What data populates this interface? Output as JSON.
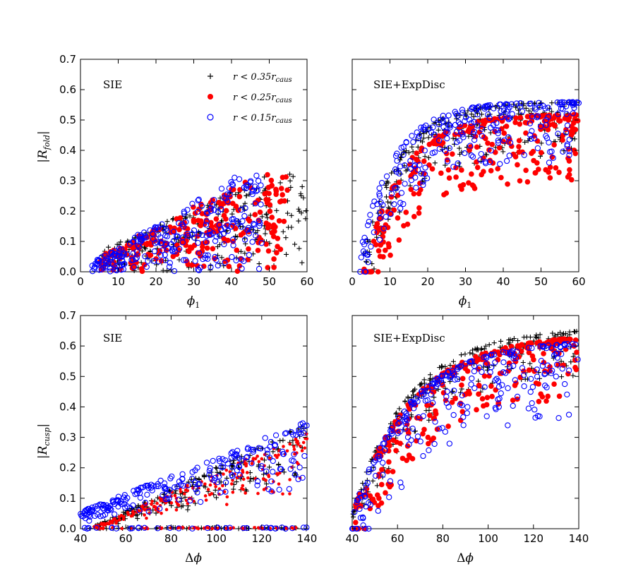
{
  "chart_data": [
    {
      "type": "scatter",
      "panel": "top-left",
      "label": "SIE",
      "xlabel": "φ1",
      "ylabel": "|R_fold|",
      "xlim": [
        0,
        60
      ],
      "ylim": [
        0,
        0.7
      ],
      "xticks": [
        "0",
        "10",
        "20",
        "30",
        "40",
        "50",
        "60"
      ],
      "yticks": [
        "0.0",
        "0.1",
        "0.2",
        "0.3",
        "0.4",
        "0.5",
        "0.6",
        "0.7"
      ],
      "legend": [
        "r < 0.35r_caus",
        "r < 0.25r_caus",
        "r < 0.15r_caus"
      ],
      "series": [
        {
          "name": "r < 0.35r_caus",
          "marker": "plus",
          "color": "#000000",
          "x_range": [
            5,
            60
          ],
          "shape": "fan",
          "slope": 0.0056,
          "bias": 0.1,
          "y_max": 0.33
        },
        {
          "name": "r < 0.25r_caus",
          "marker": "filled-circle",
          "color": "#ff0000",
          "x_range": [
            5,
            55
          ],
          "shape": "fan",
          "slope": 0.0065,
          "bias": 0.05,
          "y_max": 0.32
        },
        {
          "name": "r < 0.15r_caus",
          "marker": "open-circle",
          "color": "#0000ff",
          "x_range": [
            3,
            48
          ],
          "shape": "fan",
          "slope": 0.0075,
          "bias": 0.02,
          "y_max": 0.33
        }
      ]
    },
    {
      "type": "scatter",
      "panel": "top-right",
      "label": "SIE+ExpDisc",
      "xlabel": "φ1",
      "xlim": [
        0,
        60
      ],
      "ylim": [
        0,
        0.7
      ],
      "xticks": [
        "0",
        "10",
        "20",
        "30",
        "40",
        "50",
        "60"
      ],
      "series": [
        {
          "name": "r < 0.35r_caus",
          "marker": "plus",
          "color": "#000000",
          "x_range": [
            3,
            60
          ],
          "shape": "arc",
          "x0": 2,
          "k": 0.105,
          "y_cap": 0.56,
          "drop": 0.18
        },
        {
          "name": "r < 0.25r_caus",
          "marker": "filled-circle",
          "color": "#ff0000",
          "x_range": [
            3,
            60
          ],
          "shape": "arc",
          "x0": 3,
          "k": 0.1,
          "y_cap": 0.52,
          "drop": 0.22
        },
        {
          "name": "r < 0.15r_caus",
          "marker": "open-circle",
          "color": "#0000ff",
          "x_range": [
            2,
            60
          ],
          "shape": "arc",
          "x0": 1,
          "k": 0.11,
          "y_cap": 0.56,
          "drop": 0.2
        }
      ]
    },
    {
      "type": "scatter",
      "panel": "bottom-left",
      "label": "SIE",
      "xlabel": "Δφ",
      "ylabel": "|R_cusp|",
      "xlim": [
        40,
        140
      ],
      "ylim": [
        0,
        0.7
      ],
      "xticks": [
        "40",
        "60",
        "80",
        "100",
        "120",
        "140"
      ],
      "yticks": [
        "0.0",
        "0.1",
        "0.2",
        "0.3",
        "0.4",
        "0.5",
        "0.6",
        "0.7"
      ],
      "series": [
        {
          "name": "r < 0.35r_caus",
          "marker": "plus",
          "color": "#000000",
          "x_range": [
            44,
            140
          ],
          "shape": "wedge",
          "x0": 44,
          "slope": 0.00363,
          "y0": 0.0
        },
        {
          "name": "r < 0.25r_caus",
          "marker": "small-filled-circle",
          "color": "#ff0000",
          "x_range": [
            46,
            140
          ],
          "shape": "wedge",
          "x0": 44,
          "slope": 0.0033,
          "y0": 0.0
        },
        {
          "name": "r < 0.15r_caus",
          "marker": "open-circle",
          "color": "#0000ff",
          "x_range": [
            40,
            140
          ],
          "shape": "wedge",
          "x0": 40,
          "slope": 0.003,
          "y0": 0.055
        }
      ]
    },
    {
      "type": "scatter",
      "panel": "bottom-right",
      "label": "SIE+ExpDisc",
      "xlabel": "Δφ",
      "xlim": [
        40,
        140
      ],
      "ylim": [
        0,
        0.7
      ],
      "xticks": [
        "40",
        "60",
        "80",
        "100",
        "120",
        "140"
      ],
      "series": [
        {
          "name": "r < 0.35r_caus",
          "marker": "plus",
          "color": "#000000",
          "x_range": [
            40,
            140
          ],
          "shape": "arc",
          "x0": 38,
          "k": 0.04,
          "y_cap": 0.66,
          "drop": 0.15
        },
        {
          "name": "r < 0.25r_caus",
          "marker": "filled-circle",
          "color": "#ff0000",
          "x_range": [
            40,
            140
          ],
          "shape": "arc",
          "x0": 38,
          "k": 0.038,
          "y_cap": 0.64,
          "drop": 0.2
        },
        {
          "name": "r < 0.15r_caus",
          "marker": "open-circle",
          "color": "#0000ff",
          "x_range": [
            40,
            140
          ],
          "shape": "arc",
          "x0": 38,
          "k": 0.04,
          "y_cap": 0.62,
          "drop": 0.25
        }
      ]
    }
  ]
}
